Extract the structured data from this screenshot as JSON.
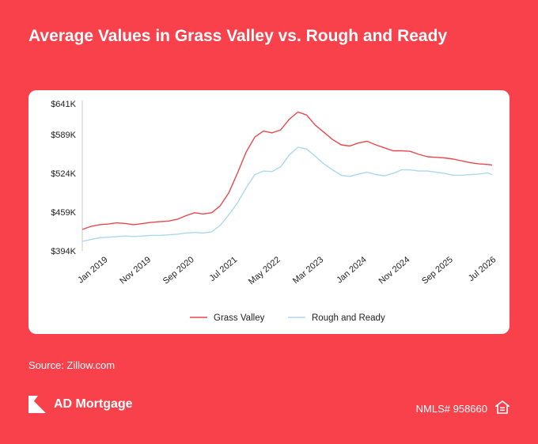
{
  "title": "Average Values in Grass Valley vs. Rough and Ready",
  "source": "Source: Zillow.com",
  "brand": {
    "name": "AD Mortgage",
    "icon": "ad-mortgage-logo-icon"
  },
  "nmls": "NMLS# 958660",
  "footer_icon": "equal-housing-icon",
  "colors": {
    "background": "#f8414a",
    "grass_valley": "#e8474c",
    "rough_and_ready": "#a9d8ef"
  },
  "chart_data": {
    "type": "line",
    "title": "Average Values in Grass Valley vs. Rough and Ready",
    "xlabel": "",
    "ylabel": "",
    "ylim": [
      394,
      641
    ],
    "yticks": [
      "$394K",
      "$459K",
      "$524K",
      "$589K",
      "$641K"
    ],
    "ytick_values": [
      394,
      459,
      524,
      589,
      641
    ],
    "xticks": [
      "Jan 2019",
      "Nov 2019",
      "Sep 2020",
      "Jul 2021",
      "May 2022",
      "Mar 2023",
      "Jan 2024",
      "Nov 2024",
      "Sep 2025",
      "Jul 2026"
    ],
    "x_range": [
      "2018-07",
      "2026-06"
    ],
    "grid": false,
    "legend_position": "bottom",
    "series": [
      {
        "name": "Grass Valley",
        "color": "#e8474c",
        "points": [
          [
            "2018-07",
            430
          ],
          [
            "2018-09",
            435
          ],
          [
            "2018-11",
            438
          ],
          [
            "2019-01",
            439
          ],
          [
            "2019-03",
            441
          ],
          [
            "2019-05",
            440
          ],
          [
            "2019-07",
            438
          ],
          [
            "2019-09",
            440
          ],
          [
            "2019-11",
            442
          ],
          [
            "2020-01",
            443
          ],
          [
            "2020-03",
            444
          ],
          [
            "2020-05",
            447
          ],
          [
            "2020-07",
            453
          ],
          [
            "2020-09",
            458
          ],
          [
            "2020-11",
            456
          ],
          [
            "2021-01",
            458
          ],
          [
            "2021-03",
            470
          ],
          [
            "2021-05",
            492
          ],
          [
            "2021-07",
            525
          ],
          [
            "2021-09",
            560
          ],
          [
            "2021-11",
            585
          ],
          [
            "2022-01",
            595
          ],
          [
            "2022-03",
            592
          ],
          [
            "2022-05",
            597
          ],
          [
            "2022-07",
            615
          ],
          [
            "2022-09",
            627
          ],
          [
            "2022-11",
            622
          ],
          [
            "2023-01",
            605
          ],
          [
            "2023-03",
            593
          ],
          [
            "2023-05",
            581
          ],
          [
            "2023-07",
            572
          ],
          [
            "2023-09",
            570
          ],
          [
            "2023-11",
            575
          ],
          [
            "2024-01",
            578
          ],
          [
            "2024-03",
            572
          ],
          [
            "2024-05",
            567
          ],
          [
            "2024-07",
            562
          ],
          [
            "2024-09",
            562
          ],
          [
            "2024-11",
            561
          ],
          [
            "2025-01",
            556
          ],
          [
            "2025-03",
            552
          ],
          [
            "2025-05",
            551
          ],
          [
            "2025-07",
            550
          ],
          [
            "2025-09",
            548
          ],
          [
            "2025-11",
            545
          ],
          [
            "2026-01",
            542
          ],
          [
            "2026-03",
            540
          ],
          [
            "2026-05",
            539
          ],
          [
            "2026-06",
            538
          ]
        ]
      },
      {
        "name": "Rough and Ready",
        "color": "#a9d8ef",
        "points": [
          [
            "2018-07",
            410
          ],
          [
            "2018-09",
            413
          ],
          [
            "2018-11",
            416
          ],
          [
            "2019-01",
            417
          ],
          [
            "2019-03",
            418
          ],
          [
            "2019-05",
            419
          ],
          [
            "2019-07",
            418
          ],
          [
            "2019-09",
            419
          ],
          [
            "2019-11",
            420
          ],
          [
            "2020-01",
            420
          ],
          [
            "2020-03",
            421
          ],
          [
            "2020-05",
            422
          ],
          [
            "2020-07",
            424
          ],
          [
            "2020-09",
            425
          ],
          [
            "2020-11",
            424
          ],
          [
            "2021-01",
            426
          ],
          [
            "2021-03",
            437
          ],
          [
            "2021-05",
            455
          ],
          [
            "2021-07",
            475
          ],
          [
            "2021-09",
            500
          ],
          [
            "2021-11",
            522
          ],
          [
            "2022-01",
            528
          ],
          [
            "2022-03",
            527
          ],
          [
            "2022-05",
            535
          ],
          [
            "2022-07",
            555
          ],
          [
            "2022-09",
            568
          ],
          [
            "2022-11",
            565
          ],
          [
            "2023-01",
            553
          ],
          [
            "2023-03",
            540
          ],
          [
            "2023-05",
            530
          ],
          [
            "2023-07",
            521
          ],
          [
            "2023-09",
            519
          ],
          [
            "2023-11",
            523
          ],
          [
            "2024-01",
            526
          ],
          [
            "2024-03",
            522
          ],
          [
            "2024-05",
            520
          ],
          [
            "2024-07",
            524
          ],
          [
            "2024-09",
            530
          ],
          [
            "2024-11",
            530
          ],
          [
            "2025-01",
            528
          ],
          [
            "2025-03",
            528
          ],
          [
            "2025-05",
            526
          ],
          [
            "2025-07",
            524
          ],
          [
            "2025-09",
            521
          ],
          [
            "2025-11",
            521
          ],
          [
            "2026-01",
            522
          ],
          [
            "2026-03",
            523
          ],
          [
            "2026-05",
            525
          ],
          [
            "2026-06",
            522
          ]
        ]
      }
    ]
  }
}
